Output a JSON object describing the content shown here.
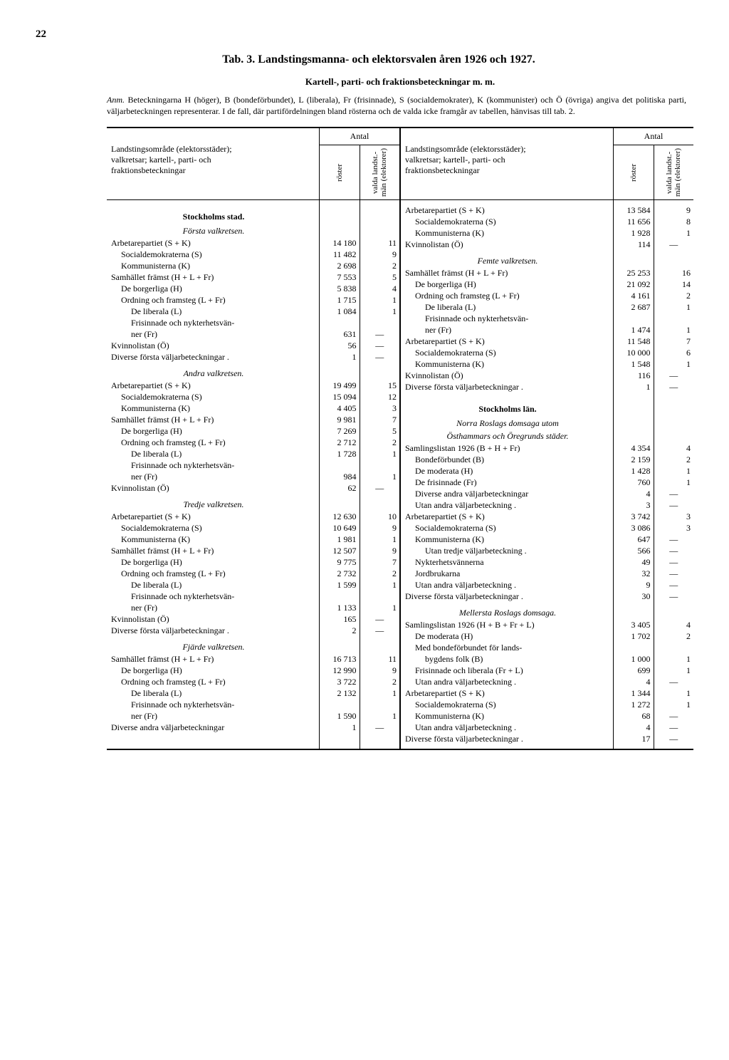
{
  "page_number": "22",
  "title": "Tab. 3.  Landstingsmanna- och elektorsvalen åren 1926 och 1927.",
  "subtitle": "Kartell-, parti- och fraktionsbeteckningar m. m.",
  "note_label": "Anm.",
  "note_text": "Beteckningarna H (höger), B (bondeförbundet), L (liberala), Fr (frisinnade), S (socialdemokrater), K (kommunister) och Ö (övriga) angiva det politiska parti, väljarbeteckningen representerar. I de fall, där partifördelningen bland rösterna och de valda icke framgår av tabellen, hänvisas till tab. 2.",
  "header_main": "Landstingsområde (elektorsstäder);\nvalkretsar; kartell-, parti- och\nfraktionsbeteckningar",
  "header_antal": "Antal",
  "header_col1": "röster",
  "header_col2": "valda landst.-\nmän (elektorer)",
  "left": [
    {
      "t": "sec",
      "l": "Stockholms stad."
    },
    {
      "t": "sub",
      "l": "Första valkretsen."
    },
    {
      "t": "row",
      "l": "Arbetarepartiet (S + K)",
      "c1": "14 180",
      "c2": "11"
    },
    {
      "t": "row",
      "l": "Socialdemokraterna (S)",
      "c1": "11 482",
      "c2": "9",
      "i": 1
    },
    {
      "t": "row",
      "l": "Kommunisterna (K)",
      "c1": "2 698",
      "c2": "2",
      "i": 1
    },
    {
      "t": "row",
      "l": "Samhället främst (H + L + Fr)",
      "c1": "7 553",
      "c2": "5"
    },
    {
      "t": "row",
      "l": "De borgerliga (H)",
      "c1": "5 838",
      "c2": "4",
      "i": 1
    },
    {
      "t": "row",
      "l": "Ordning och framsteg (L + Fr)",
      "c1": "1 715",
      "c2": "1",
      "i": 1
    },
    {
      "t": "row",
      "l": "De liberala (L)",
      "c1": "1 084",
      "c2": "1",
      "i": 2
    },
    {
      "t": "row",
      "l": "Frisinnade och nykterhetsvän-",
      "c1": "",
      "c2": "",
      "i": 2
    },
    {
      "t": "row",
      "l": "ner (Fr)",
      "c1": "631",
      "c2": "—",
      "i": 2
    },
    {
      "t": "row",
      "l": "Kvinnolistan (Ö)",
      "c1": "56",
      "c2": "—"
    },
    {
      "t": "row",
      "l": "Diverse första väljarbeteckningar .",
      "c1": "1",
      "c2": "—"
    },
    {
      "t": "gap"
    },
    {
      "t": "sub",
      "l": "Andra valkretsen."
    },
    {
      "t": "row",
      "l": "Arbetarepartiet (S + K)",
      "c1": "19 499",
      "c2": "15"
    },
    {
      "t": "row",
      "l": "Socialdemokraterna (S)",
      "c1": "15 094",
      "c2": "12",
      "i": 1
    },
    {
      "t": "row",
      "l": "Kommunisterna (K)",
      "c1": "4 405",
      "c2": "3",
      "i": 1
    },
    {
      "t": "row",
      "l": "Samhället främst (H + L + Fr)",
      "c1": "9 981",
      "c2": "7"
    },
    {
      "t": "row",
      "l": "De borgerliga (H)",
      "c1": "7 269",
      "c2": "5",
      "i": 1
    },
    {
      "t": "row",
      "l": "Ordning och framsteg (L + Fr)",
      "c1": "2 712",
      "c2": "2",
      "i": 1
    },
    {
      "t": "row",
      "l": "De liberala (L)",
      "c1": "1 728",
      "c2": "1",
      "i": 2
    },
    {
      "t": "row",
      "l": "Frisinnade och nykterhetsvän-",
      "c1": "",
      "c2": "",
      "i": 2
    },
    {
      "t": "row",
      "l": "ner (Fr)",
      "c1": "984",
      "c2": "1",
      "i": 2
    },
    {
      "t": "row",
      "l": "Kvinnolistan (Ö)",
      "c1": "62",
      "c2": "—"
    },
    {
      "t": "gap"
    },
    {
      "t": "sub",
      "l": "Tredje valkretsen."
    },
    {
      "t": "row",
      "l": "Arbetarepartiet (S + K)",
      "c1": "12 630",
      "c2": "10"
    },
    {
      "t": "row",
      "l": "Socialdemokraterna (S)",
      "c1": "10 649",
      "c2": "9",
      "i": 1
    },
    {
      "t": "row",
      "l": "Kommunisterna (K)",
      "c1": "1 981",
      "c2": "1",
      "i": 1
    },
    {
      "t": "row",
      "l": "Samhället främst (H + L + Fr)",
      "c1": "12 507",
      "c2": "9"
    },
    {
      "t": "row",
      "l": "De borgerliga (H)",
      "c1": "9 775",
      "c2": "7",
      "i": 1
    },
    {
      "t": "row",
      "l": "Ordning och framsteg (L + Fr)",
      "c1": "2 732",
      "c2": "2",
      "i": 1
    },
    {
      "t": "row",
      "l": "De liberala (L)",
      "c1": "1 599",
      "c2": "1",
      "i": 2
    },
    {
      "t": "row",
      "l": "Frisinnade och nykterhetsvän-",
      "c1": "",
      "c2": "",
      "i": 2
    },
    {
      "t": "row",
      "l": "ner (Fr)",
      "c1": "1 133",
      "c2": "1",
      "i": 2
    },
    {
      "t": "row",
      "l": "Kvinnolistan (Ö)",
      "c1": "165",
      "c2": "—"
    },
    {
      "t": "row",
      "l": "Diverse första väljarbeteckningar .",
      "c1": "2",
      "c2": "—"
    },
    {
      "t": "gap"
    },
    {
      "t": "sub",
      "l": "Fjärde valkretsen."
    },
    {
      "t": "row",
      "l": "Samhället främst (H + L + Fr)",
      "c1": "16 713",
      "c2": "11"
    },
    {
      "t": "row",
      "l": "De borgerliga (H)",
      "c1": "12 990",
      "c2": "9",
      "i": 1
    },
    {
      "t": "row",
      "l": "Ordning och framsteg (L + Fr)",
      "c1": "3 722",
      "c2": "2",
      "i": 1
    },
    {
      "t": "row",
      "l": "De liberala (L)",
      "c1": "2 132",
      "c2": "1",
      "i": 2
    },
    {
      "t": "row",
      "l": "Frisinnade och nykterhetsvän-",
      "c1": "",
      "c2": "",
      "i": 2
    },
    {
      "t": "row",
      "l": "ner (Fr)",
      "c1": "1 590",
      "c2": "1",
      "i": 2
    },
    {
      "t": "row",
      "l": "Diverse andra väljarbeteckningar",
      "c1": "1",
      "c2": "—"
    }
  ],
  "right": [
    {
      "t": "row",
      "l": "Arbetarepartiet (S + K)",
      "c1": "13 584",
      "c2": "9"
    },
    {
      "t": "row",
      "l": "Socialdemokraterna (S)",
      "c1": "11 656",
      "c2": "8",
      "i": 1
    },
    {
      "t": "row",
      "l": "Kommunisterna (K)",
      "c1": "1 928",
      "c2": "1",
      "i": 1
    },
    {
      "t": "row",
      "l": "Kvinnolistan (Ö)",
      "c1": "114",
      "c2": "—"
    },
    {
      "t": "gap"
    },
    {
      "t": "sub",
      "l": "Femte valkretsen."
    },
    {
      "t": "row",
      "l": "Samhället främst (H + L + Fr)",
      "c1": "25 253",
      "c2": "16"
    },
    {
      "t": "row",
      "l": "De borgerliga (H)",
      "c1": "21 092",
      "c2": "14",
      "i": 1
    },
    {
      "t": "row",
      "l": "Ordning och framsteg (L + Fr)",
      "c1": "4 161",
      "c2": "2",
      "i": 1
    },
    {
      "t": "row",
      "l": "De liberala (L)",
      "c1": "2 687",
      "c2": "1",
      "i": 2
    },
    {
      "t": "row",
      "l": "Frisinnade och nykterhetsvän-",
      "c1": "",
      "c2": "",
      "i": 2
    },
    {
      "t": "row",
      "l": "ner (Fr)",
      "c1": "1 474",
      "c2": "1",
      "i": 2
    },
    {
      "t": "row",
      "l": "Arbetarepartiet (S + K)",
      "c1": "11 548",
      "c2": "7"
    },
    {
      "t": "row",
      "l": "Socialdemokraterna (S)",
      "c1": "10 000",
      "c2": "6",
      "i": 1
    },
    {
      "t": "row",
      "l": "Kommunisterna (K)",
      "c1": "1 548",
      "c2": "1",
      "i": 1
    },
    {
      "t": "row",
      "l": "Kvinnolistan (Ö)",
      "c1": "116",
      "c2": "—"
    },
    {
      "t": "row",
      "l": "Diverse första väljarbeteckningar .",
      "c1": "1",
      "c2": "—"
    },
    {
      "t": "gap"
    },
    {
      "t": "sec",
      "l": "Stockholms län."
    },
    {
      "t": "sub",
      "l": "Norra Roslags domsaga utom"
    },
    {
      "t": "sub",
      "l": "Östhammars och Öregrunds städer."
    },
    {
      "t": "row",
      "l": "Samlingslistan 1926 (B + H + Fr)",
      "c1": "4 354",
      "c2": "4"
    },
    {
      "t": "row",
      "l": "Bondeförbundet (B)",
      "c1": "2 159",
      "c2": "2",
      "i": 1
    },
    {
      "t": "row",
      "l": "De moderata (H)",
      "c1": "1 428",
      "c2": "1",
      "i": 1
    },
    {
      "t": "row",
      "l": "De frisinnade (Fr)",
      "c1": "760",
      "c2": "1",
      "i": 1
    },
    {
      "t": "row",
      "l": "Diverse andra väljarbeteckningar",
      "c1": "4",
      "c2": "—",
      "i": 1
    },
    {
      "t": "row",
      "l": "Utan andra väljarbeteckning .",
      "c1": "3",
      "c2": "—",
      "i": 1
    },
    {
      "t": "row",
      "l": "Arbetarepartiet (S + K)",
      "c1": "3 742",
      "c2": "3"
    },
    {
      "t": "row",
      "l": "Socialdemokraterna (S)",
      "c1": "3 086",
      "c2": "3",
      "i": 1
    },
    {
      "t": "row",
      "l": "Kommunisterna (K)",
      "c1": "647",
      "c2": "—",
      "i": 1
    },
    {
      "t": "row",
      "l": "Utan tredje väljarbeteckning .",
      "c1": "566",
      "c2": "—",
      "i": 2
    },
    {
      "t": "row",
      "l": "Nykterhetsvännerna",
      "c1": "49",
      "c2": "—",
      "i": 1
    },
    {
      "t": "row",
      "l": "Jordbrukarna",
      "c1": "32",
      "c2": "—",
      "i": 1
    },
    {
      "t": "row",
      "l": "Utan andra väljarbeteckning .",
      "c1": "9",
      "c2": "—",
      "i": 1
    },
    {
      "t": "row",
      "l": "Diverse första väljarbeteckningar .",
      "c1": "30",
      "c2": "—"
    },
    {
      "t": "gap"
    },
    {
      "t": "sub",
      "l": "Mellersta Roslags domsaga."
    },
    {
      "t": "row",
      "l": "Samlingslistan 1926 (H + B + Fr + L)",
      "c1": "3 405",
      "c2": "4"
    },
    {
      "t": "row",
      "l": "De moderata (H)",
      "c1": "1 702",
      "c2": "2",
      "i": 1
    },
    {
      "t": "row",
      "l": "Med bondeförbundet för lands-",
      "c1": "",
      "c2": "",
      "i": 1
    },
    {
      "t": "row",
      "l": "bygdens folk (B)",
      "c1": "1 000",
      "c2": "1",
      "i": 2
    },
    {
      "t": "row",
      "l": "Frisinnade och liberala (Fr + L)",
      "c1": "699",
      "c2": "1",
      "i": 1
    },
    {
      "t": "row",
      "l": "Utan andra väljarbeteckning .",
      "c1": "4",
      "c2": "—",
      "i": 1
    },
    {
      "t": "row",
      "l": "Arbetarepartiet (S + K)",
      "c1": "1 344",
      "c2": "1"
    },
    {
      "t": "row",
      "l": "Socialdemokraterna (S)",
      "c1": "1 272",
      "c2": "1",
      "i": 1
    },
    {
      "t": "row",
      "l": "Kommunisterna (K)",
      "c1": "68",
      "c2": "—",
      "i": 1
    },
    {
      "t": "row",
      "l": "Utan andra väljarbeteckning .",
      "c1": "4",
      "c2": "—",
      "i": 1
    },
    {
      "t": "row",
      "l": "Diverse första väljarbeteckningar .",
      "c1": "17",
      "c2": "—"
    }
  ]
}
